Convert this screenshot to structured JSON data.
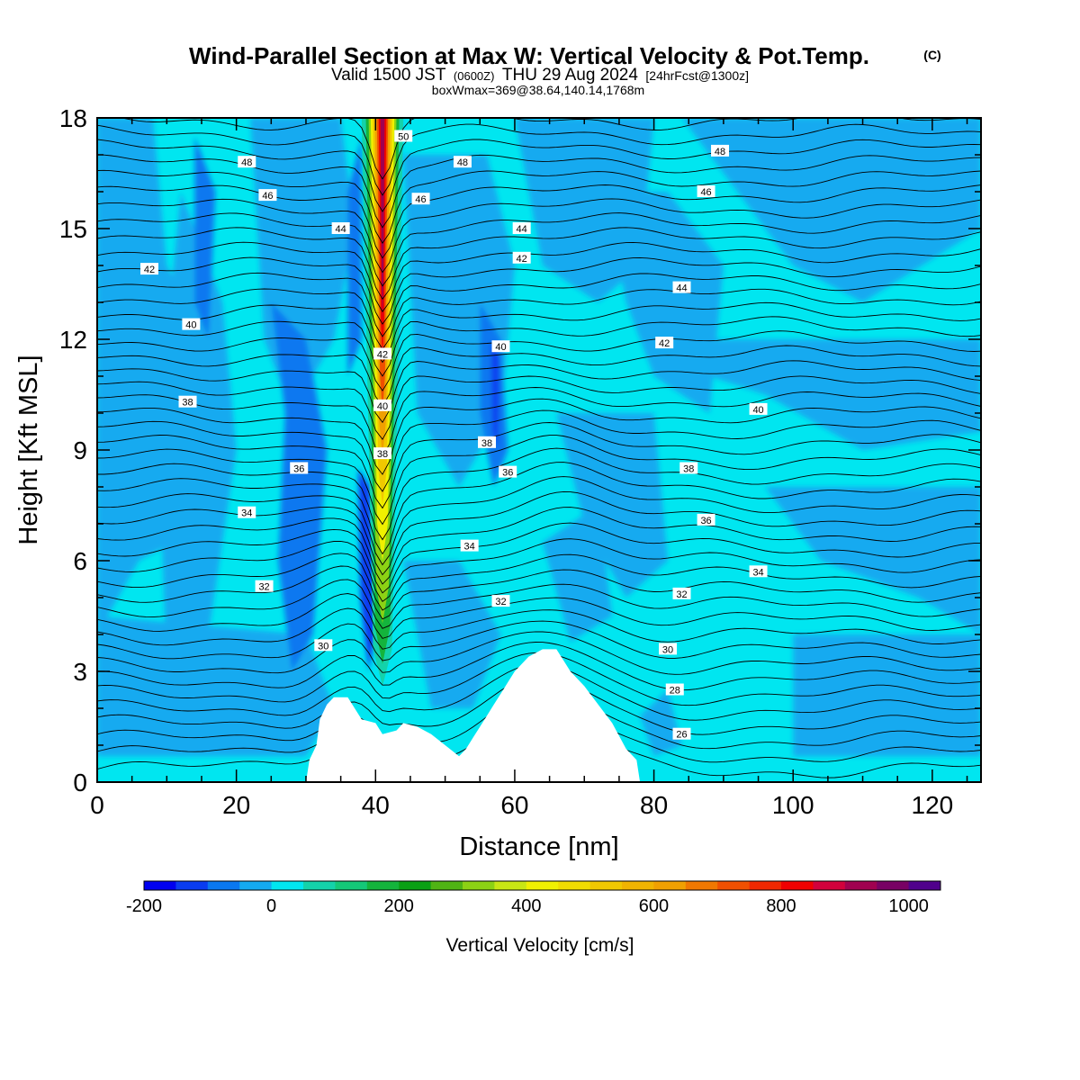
{
  "header": {
    "title": "Wind-Parallel Section at Max W: Vertical Velocity & Pot.Temp.",
    "copyright": "(C)",
    "valid_prefix": "Valid 1500 JST",
    "valid_utc": "(0600Z)",
    "valid_date": "THU 29 Aug 2024",
    "forecast": "[24hrFcst@1300z]",
    "boxinfo": "boxWmax=369@38.64,140.14,1768m"
  },
  "colorbar": {
    "label": "Vertical Velocity [cm/s]",
    "ticks": [
      "-200",
      "0",
      "200",
      "400",
      "600",
      "800",
      "1000"
    ],
    "colors": [
      "#0000f0",
      "#0a3cf0",
      "#0a78f0",
      "#14aaf0",
      "#00e6f0",
      "#14d2aa",
      "#14c878",
      "#14b43c",
      "#0aa014",
      "#50b414",
      "#8cd214",
      "#c8e614",
      "#f0f000",
      "#f0dc00",
      "#f0c800",
      "#f0b400",
      "#f0a000",
      "#f07800",
      "#f05000",
      "#f02800",
      "#f00000",
      "#d2003c",
      "#a00050",
      "#780064",
      "#50008c"
    ]
  },
  "chart_data": {
    "type": "heatmap",
    "xlabel": "Distance [nm]",
    "ylabel": "Height [Kft MSL]",
    "xlim": [
      0,
      127
    ],
    "ylim": [
      0,
      18
    ],
    "xticks": [
      0,
      20,
      40,
      60,
      80,
      100,
      120
    ],
    "yticks": [
      0,
      3,
      6,
      9,
      12,
      15,
      18
    ],
    "field": "Vertical Velocity [cm/s] (filled) and Potential Temperature (contours)",
    "color_levels": [
      -200,
      -150,
      -100,
      -50,
      0,
      50,
      100,
      150,
      200,
      250,
      300,
      350,
      400,
      450,
      500,
      550,
      600,
      650,
      700,
      750,
      800,
      850,
      900,
      950,
      1000,
      1050
    ],
    "updraft_core": {
      "x": 41,
      "ymin": 4,
      "ymax": 18
    },
    "terrain": [
      [
        30,
        0
      ],
      [
        30.5,
        0.6
      ],
      [
        31.5,
        1
      ],
      [
        32,
        1.7
      ],
      [
        33,
        2.1
      ],
      [
        34,
        2.3
      ],
      [
        36,
        2.3
      ],
      [
        37,
        2
      ],
      [
        38,
        1.7
      ],
      [
        40,
        1.6
      ],
      [
        41,
        1.3
      ],
      [
        43,
        1.4
      ],
      [
        44,
        1.6
      ],
      [
        46,
        1.5
      ],
      [
        48,
        1.3
      ],
      [
        50,
        1
      ],
      [
        52,
        0.7
      ],
      [
        53,
        0.9
      ],
      [
        54,
        1.2
      ],
      [
        55,
        1.5
      ],
      [
        56,
        1.8
      ],
      [
        57,
        2.1
      ],
      [
        58,
        2.4
      ],
      [
        59,
        2.7
      ],
      [
        60,
        3
      ],
      [
        62,
        3.4
      ],
      [
        64,
        3.6
      ],
      [
        66,
        3.6
      ],
      [
        67,
        3.3
      ],
      [
        68,
        3
      ],
      [
        70,
        2.6
      ],
      [
        72,
        2.1
      ],
      [
        74,
        1.6
      ],
      [
        76,
        0.9
      ],
      [
        77.5,
        0.6
      ],
      [
        78,
        0
      ]
    ],
    "isentrope_labels": [
      {
        "v": "50",
        "x": 44,
        "y": 17.5
      },
      {
        "v": "48",
        "x": 21.5,
        "y": 16.8
      },
      {
        "v": "48",
        "x": 52.5,
        "y": 16.8
      },
      {
        "v": "48",
        "x": 89.5,
        "y": 17.1
      },
      {
        "v": "46",
        "x": 24.5,
        "y": 15.9
      },
      {
        "v": "46",
        "x": 46.5,
        "y": 15.8
      },
      {
        "v": "46",
        "x": 87.5,
        "y": 16
      },
      {
        "v": "44",
        "x": 35,
        "y": 15
      },
      {
        "v": "44",
        "x": 61,
        "y": 15
      },
      {
        "v": "44",
        "x": 84,
        "y": 13.4
      },
      {
        "v": "42",
        "x": 7.5,
        "y": 13.9
      },
      {
        "v": "42",
        "x": 61,
        "y": 14.2
      },
      {
        "v": "42",
        "x": 41,
        "y": 11.6
      },
      {
        "v": "42",
        "x": 81.5,
        "y": 11.9
      },
      {
        "v": "40",
        "x": 13.5,
        "y": 12.4
      },
      {
        "v": "40",
        "x": 58,
        "y": 11.8
      },
      {
        "v": "40",
        "x": 41,
        "y": 10.2
      },
      {
        "v": "40",
        "x": 95,
        "y": 10.1
      },
      {
        "v": "38",
        "x": 13,
        "y": 10.3
      },
      {
        "v": "38",
        "x": 56,
        "y": 9.2
      },
      {
        "v": "38",
        "x": 41,
        "y": 8.9
      },
      {
        "v": "38",
        "x": 85,
        "y": 8.5
      },
      {
        "v": "36",
        "x": 29,
        "y": 8.5
      },
      {
        "v": "36",
        "x": 59,
        "y": 8.4
      },
      {
        "v": "36",
        "x": 87.5,
        "y": 7.1
      },
      {
        "v": "34",
        "x": 21.5,
        "y": 7.3
      },
      {
        "v": "34",
        "x": 53.5,
        "y": 6.4
      },
      {
        "v": "34",
        "x": 95,
        "y": 5.7
      },
      {
        "v": "32",
        "x": 24,
        "y": 5.3
      },
      {
        "v": "32",
        "x": 58,
        "y": 4.9
      },
      {
        "v": "32",
        "x": 84,
        "y": 5.1
      },
      {
        "v": "30",
        "x": 32.5,
        "y": 3.7
      },
      {
        "v": "30",
        "x": 82,
        "y": 3.6
      },
      {
        "v": "28",
        "x": 83,
        "y": 2.5
      },
      {
        "v": "26",
        "x": 84,
        "y": 1.3
      }
    ]
  }
}
